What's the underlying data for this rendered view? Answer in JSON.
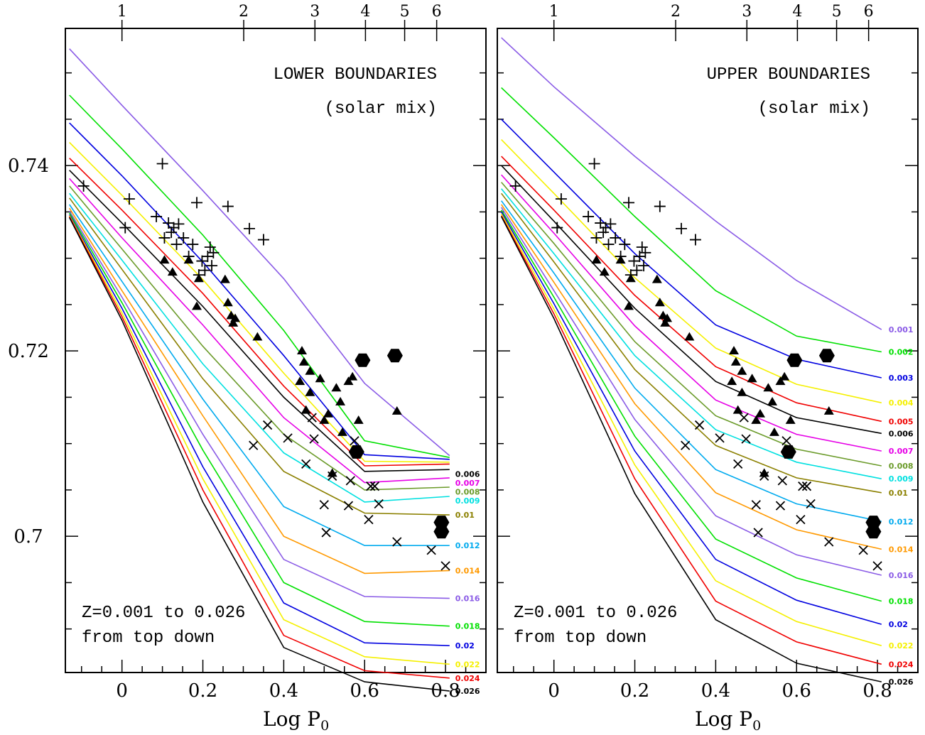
{
  "chart_data": [
    {
      "type": "line",
      "panel": "left",
      "title": "LOWER BOUNDARIES",
      "subtitle": "(solar mix)",
      "note_lines": [
        "Z=0.001 to 0.026",
        "from top down"
      ],
      "xlabel": "Log P",
      "xlabel_sub": "0",
      "xlim": [
        -0.14,
        0.9
      ],
      "ylim": [
        0.6853,
        0.7548
      ],
      "x_ticks": [
        "0",
        "0.2",
        "0.4",
        "0.6",
        "0.8"
      ],
      "y_ticks": [
        "0.74",
        "0.72",
        "0.7"
      ],
      "top_axis_labels": [
        "1",
        "2",
        "3",
        "4",
        "5",
        "6"
      ],
      "series": [
        {
          "name": "0.001",
          "color": "#8a5be6",
          "x": [
            -0.13,
            0.0,
            0.2,
            0.4,
            0.6,
            0.81
          ],
          "y": [
            0.7526,
            0.7465,
            0.7373,
            0.7278,
            0.7165,
            0.7087
          ]
        },
        {
          "name": "0.002",
          "color": "#00e000",
          "x": [
            -0.13,
            0.0,
            0.2,
            0.4,
            0.6,
            0.81
          ],
          "y": [
            0.7476,
            0.7418,
            0.7325,
            0.7222,
            0.7103,
            0.7085
          ]
        },
        {
          "name": "0.003",
          "color": "#0000e0",
          "x": [
            -0.13,
            0.0,
            0.2,
            0.4,
            0.6,
            0.81
          ],
          "y": [
            0.7446,
            0.7389,
            0.7296,
            0.7195,
            0.7088,
            0.7083
          ]
        },
        {
          "name": "0.004",
          "color": "#f5f000",
          "x": [
            -0.13,
            0.0,
            0.2,
            0.4,
            0.6,
            0.81
          ],
          "y": [
            0.7425,
            0.7368,
            0.7277,
            0.7176,
            0.7081,
            0.708
          ]
        },
        {
          "name": "0.005",
          "color": "#f00000",
          "x": [
            -0.13,
            0.0,
            0.2,
            0.4,
            0.6,
            0.81
          ],
          "y": [
            0.7408,
            0.7352,
            0.7262,
            0.7162,
            0.7076,
            0.7078
          ]
        },
        {
          "name": "0.006",
          "color": "#000000",
          "x": [
            -0.13,
            0.0,
            0.2,
            0.4,
            0.6,
            0.81
          ],
          "y": [
            0.7395,
            0.7338,
            0.7248,
            0.715,
            0.707,
            0.7072
          ]
        },
        {
          "name": "0.007",
          "color": "#e600e6",
          "x": [
            -0.13,
            0.0,
            0.2,
            0.4,
            0.6,
            0.81
          ],
          "y": [
            0.7386,
            0.7322,
            0.7228,
            0.7128,
            0.7058,
            0.7063
          ]
        },
        {
          "name": "0.008",
          "color": "#6b9b2a",
          "x": [
            -0.13,
            0.0,
            0.2,
            0.4,
            0.6,
            0.81
          ],
          "y": [
            0.7378,
            0.731,
            0.7205,
            0.711,
            0.705,
            0.7053
          ]
        },
        {
          "name": "0.009",
          "color": "#00e0e0",
          "x": [
            -0.13,
            0.0,
            0.2,
            0.4,
            0.6,
            0.81
          ],
          "y": [
            0.737,
            0.7298,
            0.7186,
            0.709,
            0.7037,
            0.7043
          ]
        },
        {
          "name": "0.01",
          "color": "#8b8000",
          "x": [
            -0.13,
            0.0,
            0.2,
            0.4,
            0.6,
            0.81
          ],
          "y": [
            0.7365,
            0.7288,
            0.717,
            0.707,
            0.7025,
            0.7023
          ]
        },
        {
          "name": "0.012",
          "color": "#00aaee",
          "x": [
            -0.13,
            0.0,
            0.2,
            0.4,
            0.6,
            0.81
          ],
          "y": [
            0.7358,
            0.7275,
            0.7148,
            0.7032,
            0.699,
            0.699
          ]
        },
        {
          "name": "0.014",
          "color": "#ff9900",
          "x": [
            -0.13,
            0.0,
            0.2,
            0.4,
            0.6,
            0.81
          ],
          "y": [
            0.7354,
            0.7265,
            0.713,
            0.7,
            0.696,
            0.6963
          ]
        },
        {
          "name": "0.016",
          "color": "#8a5be6",
          "x": [
            -0.13,
            0.0,
            0.2,
            0.4,
            0.6,
            0.81
          ],
          "y": [
            0.7351,
            0.7258,
            0.711,
            0.6975,
            0.6935,
            0.6933
          ]
        },
        {
          "name": "0.018",
          "color": "#00e000",
          "x": [
            -0.13,
            0.0,
            0.2,
            0.4,
            0.6,
            0.81
          ],
          "y": [
            0.7349,
            0.7252,
            0.7093,
            0.695,
            0.6908,
            0.6903
          ]
        },
        {
          "name": "0.02",
          "color": "#0000e0",
          "x": [
            -0.13,
            0.0,
            0.2,
            0.4,
            0.6,
            0.81
          ],
          "y": [
            0.7347,
            0.7246,
            0.7075,
            0.6928,
            0.6885,
            0.6882
          ]
        },
        {
          "name": "0.022",
          "color": "#f5f000",
          "x": [
            -0.13,
            0.0,
            0.2,
            0.4,
            0.6,
            0.81
          ],
          "y": [
            0.7346,
            0.7241,
            0.7062,
            0.691,
            0.687,
            0.6862
          ]
        },
        {
          "name": "0.024",
          "color": "#f00000",
          "x": [
            -0.13,
            0.0,
            0.2,
            0.4,
            0.6,
            0.81
          ],
          "y": [
            0.7345,
            0.7237,
            0.705,
            0.6893,
            0.6855,
            0.6847
          ]
        },
        {
          "name": "0.026",
          "color": "#000000",
          "x": [
            -0.13,
            0.0,
            0.2,
            0.4,
            0.6,
            0.81
          ],
          "y": [
            0.7344,
            0.7233,
            0.7037,
            0.688,
            0.6843,
            0.6833
          ]
        }
      ],
      "visible_series_labels": [
        "0.006",
        "0.007",
        "0.008",
        "0.009",
        "0.01",
        "0.012",
        "0.014",
        "0.016",
        "0.018",
        "0.02",
        "0.022",
        "0.024",
        "0.026"
      ]
    },
    {
      "type": "line",
      "panel": "right",
      "title": "UPPER BOUNDARIES",
      "subtitle": "(solar mix)",
      "note_lines": [
        "Z=0.001 to 0.026",
        "from top down"
      ],
      "xlabel": "Log P",
      "xlabel_sub": "0",
      "xlim": [
        -0.14,
        0.9
      ],
      "ylim": [
        0.6853,
        0.7548
      ],
      "x_ticks": [
        "0",
        "0.2",
        "0.4",
        "0.6",
        "0.8"
      ],
      "y_ticks": [
        "0.74",
        "0.72",
        "0.7"
      ],
      "top_axis_labels": [
        "1",
        "2",
        "3",
        "4",
        "5",
        "6"
      ],
      "series": [
        {
          "name": "0.001",
          "color": "#8a5be6",
          "x": [
            -0.13,
            0.0,
            0.2,
            0.4,
            0.6,
            0.81
          ],
          "y": [
            0.7538,
            0.7485,
            0.741,
            0.734,
            0.7276,
            0.7223
          ]
        },
        {
          "name": "0.002",
          "color": "#00e000",
          "x": [
            -0.13,
            0.0,
            0.2,
            0.4,
            0.6,
            0.81
          ],
          "y": [
            0.7484,
            0.743,
            0.7345,
            0.7265,
            0.7216,
            0.7199
          ]
        },
        {
          "name": "0.003",
          "color": "#0000e0",
          "x": [
            -0.13,
            0.0,
            0.2,
            0.4,
            0.6,
            0.81
          ],
          "y": [
            0.745,
            0.7393,
            0.7305,
            0.7228,
            0.7191,
            0.7171
          ]
        },
        {
          "name": "0.004",
          "color": "#f5f000",
          "x": [
            -0.13,
            0.0,
            0.2,
            0.4,
            0.6,
            0.81
          ],
          "y": [
            0.7428,
            0.737,
            0.7279,
            0.7203,
            0.7164,
            0.7144
          ]
        },
        {
          "name": "0.005",
          "color": "#f00000",
          "x": [
            -0.13,
            0.0,
            0.2,
            0.4,
            0.6,
            0.81
          ],
          "y": [
            0.741,
            0.7352,
            0.726,
            0.7183,
            0.7144,
            0.7124
          ]
        },
        {
          "name": "0.006",
          "color": "#000000",
          "x": [
            -0.13,
            0.0,
            0.2,
            0.4,
            0.6,
            0.81
          ],
          "y": [
            0.74,
            0.734,
            0.7246,
            0.7167,
            0.7128,
            0.7111
          ]
        },
        {
          "name": "0.007",
          "color": "#e600e6",
          "x": [
            -0.13,
            0.0,
            0.2,
            0.4,
            0.6,
            0.81
          ],
          "y": [
            0.739,
            0.7327,
            0.7227,
            0.7147,
            0.711,
            0.7092
          ]
        },
        {
          "name": "0.008",
          "color": "#6b9b2a",
          "x": [
            -0.13,
            0.0,
            0.2,
            0.4,
            0.6,
            0.81
          ],
          "y": [
            0.7382,
            0.7316,
            0.721,
            0.713,
            0.7094,
            0.7076
          ]
        },
        {
          "name": "0.009",
          "color": "#00e0e0",
          "x": [
            -0.13,
            0.0,
            0.2,
            0.4,
            0.6,
            0.81
          ],
          "y": [
            0.7375,
            0.7305,
            0.7195,
            0.7115,
            0.708,
            0.7062
          ]
        },
        {
          "name": "0.01",
          "color": "#8b8000",
          "x": [
            -0.13,
            0.0,
            0.2,
            0.4,
            0.6,
            0.81
          ],
          "y": [
            0.737,
            0.7296,
            0.718,
            0.7098,
            0.7063,
            0.7047
          ]
        },
        {
          "name": "0.012",
          "color": "#00aaee",
          "x": [
            -0.13,
            0.0,
            0.2,
            0.4,
            0.6,
            0.81
          ],
          "y": [
            0.7362,
            0.7284,
            0.716,
            0.7072,
            0.7035,
            0.7016
          ]
        },
        {
          "name": "0.014",
          "color": "#ff9900",
          "x": [
            -0.13,
            0.0,
            0.2,
            0.4,
            0.6,
            0.81
          ],
          "y": [
            0.7358,
            0.7274,
            0.7143,
            0.7047,
            0.7007,
            0.6986
          ]
        },
        {
          "name": "0.016",
          "color": "#8a5be6",
          "x": [
            -0.13,
            0.0,
            0.2,
            0.4,
            0.6,
            0.81
          ],
          "y": [
            0.7355,
            0.7265,
            0.7126,
            0.7022,
            0.698,
            0.6958
          ]
        },
        {
          "name": "0.018",
          "color": "#00e000",
          "x": [
            -0.13,
            0.0,
            0.2,
            0.4,
            0.6,
            0.81
          ],
          "y": [
            0.7352,
            0.7258,
            0.7108,
            0.6997,
            0.6955,
            0.693
          ]
        },
        {
          "name": "0.02",
          "color": "#0000e0",
          "x": [
            -0.13,
            0.0,
            0.2,
            0.4,
            0.6,
            0.81
          ],
          "y": [
            0.735,
            0.7251,
            0.7092,
            0.6975,
            0.6931,
            0.6905
          ]
        },
        {
          "name": "0.022",
          "color": "#f5f000",
          "x": [
            -0.13,
            0.0,
            0.2,
            0.4,
            0.6,
            0.81
          ],
          "y": [
            0.7348,
            0.7245,
            0.7077,
            0.6952,
            0.6908,
            0.6882
          ]
        },
        {
          "name": "0.024",
          "color": "#f00000",
          "x": [
            -0.13,
            0.0,
            0.2,
            0.4,
            0.6,
            0.81
          ],
          "y": [
            0.7346,
            0.724,
            0.7062,
            0.693,
            0.6886,
            0.6862
          ]
        },
        {
          "name": "0.026",
          "color": "#000000",
          "x": [
            -0.13,
            0.0,
            0.2,
            0.4,
            0.6,
            0.81
          ],
          "y": [
            0.7345,
            0.7235,
            0.7046,
            0.691,
            0.6863,
            0.6843
          ]
        }
      ],
      "visible_series_labels": [
        "0.001",
        "0.002",
        "0.003",
        "0.004",
        "0.005",
        "0.006",
        "0.007",
        "0.008",
        "0.009",
        "0.01",
        "0.012",
        "0.014",
        "0.016",
        "0.018",
        "0.02",
        "0.022",
        "0.024",
        "0.026"
      ]
    }
  ],
  "markers": {
    "plus": [
      [
        -0.095,
        0.7378
      ],
      [
        0.008,
        0.7333
      ],
      [
        0.018,
        0.7364
      ],
      [
        0.085,
        0.7345
      ],
      [
        0.1,
        0.7402
      ],
      [
        0.105,
        0.7322
      ],
      [
        0.115,
        0.7338
      ],
      [
        0.122,
        0.7328
      ],
      [
        0.128,
        0.7333
      ],
      [
        0.135,
        0.7315
      ],
      [
        0.14,
        0.7337
      ],
      [
        0.152,
        0.7322
      ],
      [
        0.165,
        0.7302
      ],
      [
        0.175,
        0.7315
      ],
      [
        0.185,
        0.736
      ],
      [
        0.19,
        0.7282
      ],
      [
        0.198,
        0.7297
      ],
      [
        0.205,
        0.7287
      ],
      [
        0.212,
        0.7302
      ],
      [
        0.218,
        0.7312
      ],
      [
        0.222,
        0.7292
      ],
      [
        0.226,
        0.7306
      ],
      [
        0.262,
        0.7356
      ],
      [
        0.315,
        0.7332
      ],
      [
        0.35,
        0.732
      ]
    ],
    "triangle": [
      [
        0.105,
        0.7298
      ],
      [
        0.125,
        0.7285
      ],
      [
        0.165,
        0.7298
      ],
      [
        0.185,
        0.7248
      ],
      [
        0.19,
        0.7278
      ],
      [
        0.255,
        0.7277
      ],
      [
        0.262,
        0.7252
      ],
      [
        0.27,
        0.7238
      ],
      [
        0.275,
        0.723
      ],
      [
        0.28,
        0.7235
      ],
      [
        0.335,
        0.7215
      ],
      [
        0.44,
        0.7167
      ],
      [
        0.445,
        0.72
      ],
      [
        0.45,
        0.7188
      ],
      [
        0.455,
        0.7136
      ],
      [
        0.465,
        0.7155
      ],
      [
        0.465,
        0.7178
      ],
      [
        0.49,
        0.717
      ],
      [
        0.5,
        0.7125
      ],
      [
        0.51,
        0.7132
      ],
      [
        0.53,
        0.716
      ],
      [
        0.54,
        0.7145
      ],
      [
        0.545,
        0.7112
      ],
      [
        0.56,
        0.7167
      ],
      [
        0.57,
        0.7172
      ],
      [
        0.585,
        0.7125
      ],
      [
        0.68,
        0.7135
      ],
      [
        0.52,
        0.7068
      ]
    ],
    "cross": [
      [
        0.325,
        0.7098
      ],
      [
        0.36,
        0.712
      ],
      [
        0.41,
        0.7106
      ],
      [
        0.455,
        0.7078
      ],
      [
        0.47,
        0.7128
      ],
      [
        0.475,
        0.7105
      ],
      [
        0.5,
        0.7034
      ],
      [
        0.505,
        0.7004
      ],
      [
        0.52,
        0.7065
      ],
      [
        0.56,
        0.7033
      ],
      [
        0.565,
        0.706
      ],
      [
        0.575,
        0.7103
      ],
      [
        0.61,
        0.7018
      ],
      [
        0.615,
        0.7054
      ],
      [
        0.625,
        0.7054
      ],
      [
        0.635,
        0.7035
      ],
      [
        0.68,
        0.6994
      ],
      [
        0.765,
        0.6985
      ],
      [
        0.8,
        0.6968
      ]
    ],
    "hexagon": [
      [
        0.58,
        0.7091
      ],
      [
        0.595,
        0.719
      ],
      [
        0.675,
        0.7195
      ],
      [
        0.79,
        0.7015
      ],
      [
        0.79,
        0.7005
      ]
    ]
  }
}
